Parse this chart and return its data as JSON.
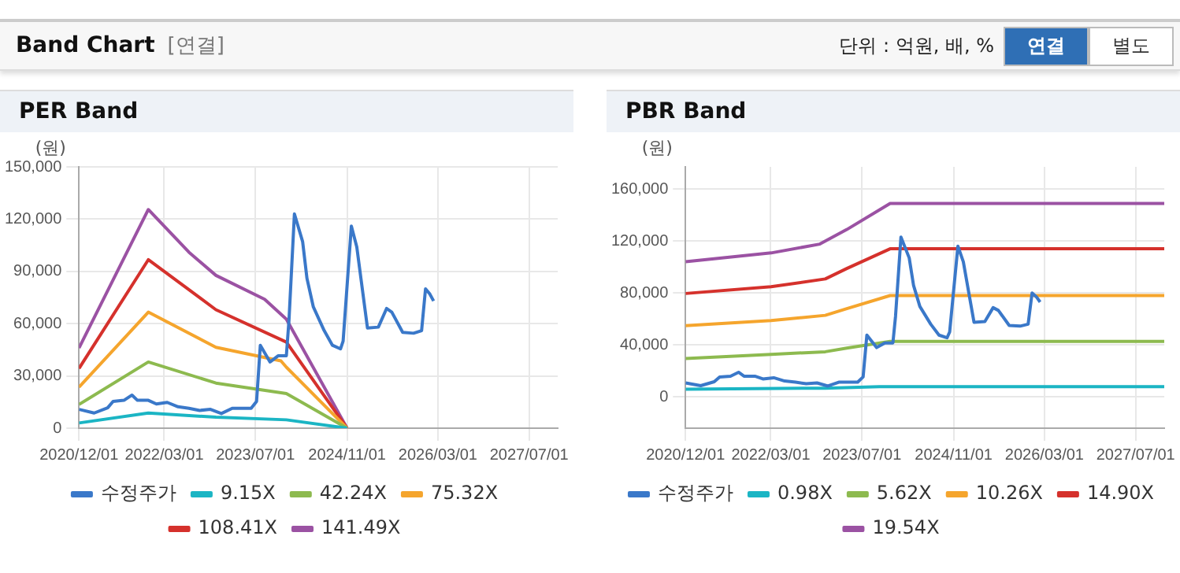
{
  "chart_data": [
    {
      "type": "other",
      "title": "Band Chart",
      "subtitle": "[연결]",
      "annotations": [
        "단위 : 억원, 배, %",
        "연결",
        "별도"
      ]
    },
    {
      "type": "line",
      "title": "PER Band",
      "ylabel": "(원)",
      "legend": "bottom",
      "grid": true,
      "marker": "none",
      "line_style": "solid",
      "xlim": [
        "2020-12-01",
        "2027-12-01"
      ],
      "ylim": [
        0,
        150000
      ],
      "yticks": [
        0,
        {
          "value": 30000,
          "label": "30,000"
        },
        {
          "value": 60000,
          "label": "60,000"
        },
        {
          "value": 90000,
          "label": "90,000"
        },
        {
          "value": 120000,
          "label": "120,000"
        },
        {
          "value": 150000,
          "label": "150,000"
        }
      ],
      "xticks": [
        {
          "value": "2020-12-01",
          "label": "2020/12/01"
        },
        {
          "value": "2022-03-01",
          "label": "2022/03/01"
        },
        {
          "value": "2023-07-01",
          "label": "2023/07/01"
        },
        {
          "value": "2024-11-01",
          "label": "2024/11/01"
        },
        {
          "value": "2026-03-01",
          "label": "2026/03/01"
        },
        {
          "value": "2027-07-01",
          "label": "2027/07/01"
        }
      ],
      "series": [
        {
          "name": "수정주가",
          "color": "#3a78c9",
          "x": [
            "2020-12-01",
            "2021-02-20",
            "2021-05-03",
            "2021-06-01",
            "2021-07-29",
            "2021-09-10",
            "2021-10-09",
            "2021-12-06",
            "2022-01-18",
            "2022-03-17",
            "2022-05-14",
            "2022-07-11",
            "2022-09-06",
            "2022-11-03",
            "2022-12-31",
            "2023-02-27",
            "2023-06-08",
            "2023-07-07",
            "2023-07-27",
            "2023-09-17",
            "2023-10-31",
            "2023-12-13",
            "2023-12-27",
            "2024-01-25",
            "2024-03-09",
            "2024-04-01",
            "2024-05-05",
            "2024-07-02",
            "2024-08-15",
            "2024-09-27",
            "2024-10-11",
            "2024-11-24",
            "2024-12-23",
            "2025-02-18",
            "2025-04-17",
            "2025-05-31",
            "2025-06-28",
            "2025-08-25",
            "2025-10-22",
            "2025-12-04",
            "2025-12-25",
            "2026-01-17",
            "2026-02-06"
          ],
          "values": [
            10800,
            8700,
            11700,
            15400,
            16000,
            19000,
            16000,
            16000,
            13900,
            14800,
            12300,
            11400,
            10200,
            10800,
            8400,
            11400,
            11400,
            15400,
            47600,
            38000,
            41600,
            41600,
            62000,
            123000,
            107000,
            86000,
            69600,
            56000,
            47600,
            45500,
            50000,
            116000,
            104000,
            57500,
            58000,
            68700,
            66600,
            55000,
            54500,
            56000,
            80000,
            77000,
            73000
          ]
        },
        {
          "name": "9.15X",
          "color": "#1bb5c4",
          "x": [
            "2020-12-01",
            "2021-12-06",
            "2022-12-02",
            "2023-12-13",
            "2024-11-01"
          ],
          "values": [
            3000,
            8700,
            6300,
            4800,
            0
          ]
        },
        {
          "name": "42.24X",
          "color": "#8dba4f",
          "x": [
            "2020-12-01",
            "2021-12-06",
            "2022-12-02",
            "2023-12-13",
            "2024-11-01"
          ],
          "values": [
            13600,
            38000,
            25900,
            19900,
            0
          ]
        },
        {
          "name": "75.32X",
          "color": "#f5a52d",
          "x": [
            "2020-12-01",
            "2021-12-06",
            "2022-12-02",
            "2023-11-14",
            "2023-12-13",
            "2024-11-01"
          ],
          "values": [
            23500,
            66600,
            46400,
            38600,
            35000,
            0
          ]
        },
        {
          "name": "108.41X",
          "color": "#d5312c",
          "x": [
            "2020-12-01",
            "2021-12-06",
            "2022-12-02",
            "2023-12-13",
            "2024-11-01"
          ],
          "values": [
            34300,
            96700,
            68000,
            49400,
            0
          ]
        },
        {
          "name": "141.49X",
          "color": "#9b52a3",
          "x": [
            "2020-12-01",
            "2021-12-06",
            "2022-07-11",
            "2022-12-02",
            "2023-08-19",
            "2023-12-13",
            "2024-11-01"
          ],
          "values": [
            46000,
            125500,
            101000,
            87700,
            74000,
            62600,
            0
          ]
        }
      ]
    },
    {
      "type": "line",
      "title": "PBR Band",
      "ylabel": "(원)",
      "legend": "bottom",
      "grid": true,
      "marker": "none",
      "line_style": "solid",
      "xlim": [
        "2020-12-01",
        "2027-12-01"
      ],
      "ylim": [
        -24000,
        177000
      ],
      "yticks": [
        0,
        {
          "value": 40000,
          "label": "40,000"
        },
        {
          "value": 80000,
          "label": "80,000"
        },
        {
          "value": 120000,
          "label": "120,000"
        },
        {
          "value": 160000,
          "label": "160,000"
        }
      ],
      "xticks": [
        {
          "value": "2020-12-01",
          "label": "2020/12/01"
        },
        {
          "value": "2022-03-01",
          "label": "2022/03/01"
        },
        {
          "value": "2023-07-01",
          "label": "2023/07/01"
        },
        {
          "value": "2024-11-01",
          "label": "2024/11/01"
        },
        {
          "value": "2026-03-01",
          "label": "2026/03/01"
        },
        {
          "value": "2027-07-01",
          "label": "2027/07/01"
        }
      ],
      "series": [
        {
          "name": "수정주가",
          "color": "#3a78c9",
          "x": [
            "2020-12-01",
            "2021-02-20",
            "2021-05-03",
            "2021-06-01",
            "2021-07-29",
            "2021-09-10",
            "2021-10-09",
            "2021-12-06",
            "2022-01-18",
            "2022-03-17",
            "2022-05-14",
            "2022-07-11",
            "2022-09-06",
            "2022-11-03",
            "2022-12-31",
            "2023-02-27",
            "2023-06-08",
            "2023-07-07",
            "2023-07-27",
            "2023-09-17",
            "2023-10-31",
            "2023-12-13",
            "2023-12-27",
            "2024-01-25",
            "2024-03-09",
            "2024-04-01",
            "2024-05-05",
            "2024-07-02",
            "2024-08-15",
            "2024-09-27",
            "2024-10-11",
            "2024-11-24",
            "2024-12-23",
            "2025-02-18",
            "2025-04-17",
            "2025-05-31",
            "2025-06-28",
            "2025-08-25",
            "2025-10-22",
            "2025-12-04",
            "2025-12-25",
            "2026-01-17",
            "2026-02-06"
          ],
          "values": [
            10800,
            8700,
            11700,
            15400,
            16000,
            19000,
            16000,
            16000,
            13900,
            14800,
            12300,
            11400,
            10200,
            10800,
            8400,
            11400,
            11400,
            15400,
            47600,
            38000,
            41600,
            41600,
            62000,
            123000,
            107000,
            86000,
            69600,
            56000,
            47600,
            45500,
            50000,
            116000,
            104000,
            57500,
            58000,
            68700,
            66600,
            55000,
            54500,
            56000,
            80000,
            77000,
            73000
          ]
        },
        {
          "name": "0.98X",
          "color": "#1bb5c4",
          "x": [
            "2020-12-01",
            "2022-12-17",
            "2023-10-02",
            "2027-12-01"
          ],
          "values": [
            6000,
            6800,
            8000,
            8000
          ]
        },
        {
          "name": "5.62X",
          "color": "#8dba4f",
          "x": [
            "2020-12-01",
            "2022-03-03",
            "2022-12-17",
            "2023-04-11",
            "2023-11-28",
            "2027-12-01"
          ],
          "values": [
            29600,
            32800,
            34800,
            37600,
            42800,
            42800
          ]
        },
        {
          "name": "10.26X",
          "color": "#f5a52d",
          "x": [
            "2020-12-01",
            "2022-03-03",
            "2022-12-17",
            "2023-04-11",
            "2023-11-28",
            "2027-12-01"
          ],
          "values": [
            54800,
            58800,
            62800,
            68000,
            78000,
            78000
          ]
        },
        {
          "name": "14.90X",
          "color": "#d5312c",
          "x": [
            "2020-12-01",
            "2022-03-03",
            "2022-12-17",
            "2023-04-11",
            "2023-11-28",
            "2027-12-01"
          ],
          "values": [
            79600,
            84800,
            90800,
            98800,
            114000,
            114000
          ]
        },
        {
          "name": "19.54X",
          "color": "#9b52a3",
          "x": [
            "2020-12-01",
            "2022-03-03",
            "2022-11-18",
            "2023-04-11",
            "2023-11-28",
            "2027-12-01"
          ],
          "values": [
            104000,
            110800,
            117600,
            128800,
            148800,
            148800
          ]
        }
      ]
    }
  ]
}
